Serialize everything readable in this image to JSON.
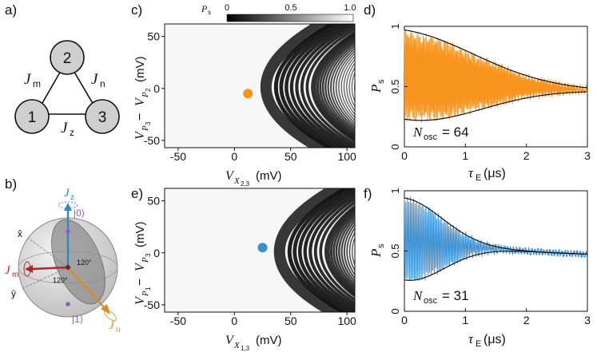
{
  "panels": {
    "a": "a)",
    "b": "b)",
    "c": "c)",
    "d": "d)",
    "e": "e)",
    "f": "f)"
  },
  "triangle": {
    "nodes": [
      "2",
      "1",
      "3"
    ],
    "edges": {
      "m": "m",
      "n": "n",
      "z": "z"
    },
    "J": "J"
  },
  "bloch": {
    "J": "J",
    "labels": {
      "z": "z",
      "m": "m",
      "n": "n"
    },
    "ket0": "|0⟩",
    "ket1": "|1⟩",
    "x_axis": "x̂",
    "y_axis": "ŷ",
    "angle_1": "120°",
    "angle_2": "120°"
  },
  "colors": {
    "orange": "#f7941d",
    "blue": "#3a8fd1",
    "Jz": "#2f87c8",
    "Jm": "#a52a2a",
    "Jn": "#d98c2a",
    "ket": "#8e5ac8"
  },
  "colorbar": {
    "label_main": "P",
    "label_sub": "s",
    "ticks": [
      "0",
      "0.5",
      "1.0"
    ]
  },
  "maps": [
    {
      "id": "c",
      "ylabel": {
        "v": "V",
        "p1": "P",
        "s1": "3",
        "p2": "P",
        "s2": "2",
        "minus": " − ",
        "unit": "(mV)"
      },
      "xlabel": {
        "v": "V",
        "x": "X",
        "sub": "2,3",
        "unit": "(mV)"
      },
      "xticks": [
        "-50",
        "0",
        "50",
        "100"
      ],
      "yticks": [
        "50",
        "0",
        "-50"
      ],
      "marker": {
        "x": 12,
        "y": -5,
        "color": "orange"
      }
    },
    {
      "id": "e",
      "ylabel": {
        "v": "V",
        "p1": "P",
        "s1": "1",
        "p2": "P",
        "s2": "3",
        "minus": " − ",
        "unit": "(mV)"
      },
      "xlabel": {
        "v": "V",
        "x": "X",
        "sub": "1,3",
        "unit": "(mV)"
      },
      "xticks": [
        "-50",
        "0",
        "50",
        "100"
      ],
      "yticks": [
        "50",
        "0",
        "-50"
      ],
      "marker": {
        "x": 25,
        "y": 5,
        "color": "blue"
      }
    }
  ],
  "chart_data": [
    {
      "id": "d",
      "type": "line",
      "xlabel": {
        "tau": "τ",
        "sub": "E",
        "unit": "(μs)"
      },
      "ylabel": {
        "main": "P",
        "sub": "s"
      },
      "xlim": [
        0,
        3
      ],
      "ylim": [
        0,
        1
      ],
      "xticks": [
        "0",
        "1",
        "2",
        "3"
      ],
      "yticks": [
        "0",
        "0.5",
        "1"
      ],
      "annotation": {
        "main": "N",
        "sub": "osc",
        "value": "= 64"
      },
      "n_osc": 64,
      "envelope": {
        "center": 0.6,
        "amplitude": 0.37,
        "tau": 1.7,
        "final": 0.43
      },
      "color": "orange"
    },
    {
      "id": "f",
      "type": "line",
      "xlabel": {
        "tau": "τ",
        "sub": "E",
        "unit": "(μs)"
      },
      "ylabel": {
        "main": "P",
        "sub": "s"
      },
      "xlim": [
        0,
        3
      ],
      "ylim": [
        0,
        1
      ],
      "xticks": [
        "0",
        "1",
        "2",
        "3"
      ],
      "yticks": [
        "0",
        "0.5",
        "1"
      ],
      "annotation": {
        "main": "N",
        "sub": "osc",
        "value": "= 31"
      },
      "n_osc": 31,
      "envelope": {
        "center": 0.6,
        "amplitude": 0.34,
        "tau": 0.9,
        "final": 0.43
      },
      "color": "blue"
    }
  ]
}
